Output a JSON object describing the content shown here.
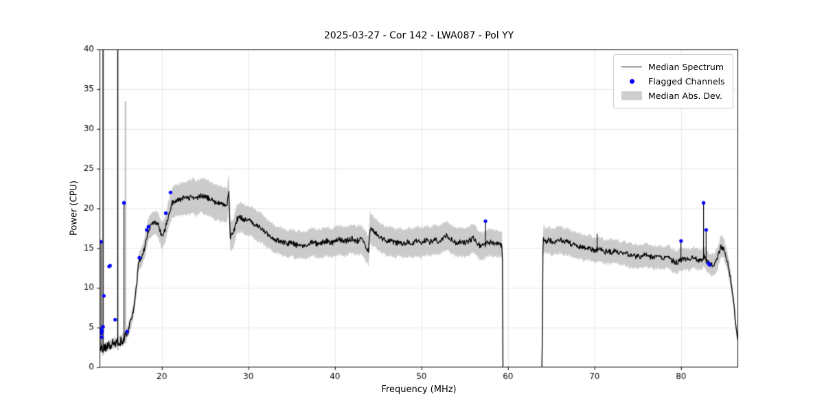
{
  "chart_data": {
    "type": "line",
    "title": "2025-03-27 - Cor 142 - LWA087 - Pol YY",
    "xlabel": "Frequency (MHz)",
    "ylabel": "Power (CPU)",
    "xlim": [
      12.8,
      86.6
    ],
    "ylim": [
      0,
      40
    ],
    "xticks": [
      20,
      30,
      40,
      50,
      60,
      70,
      80
    ],
    "yticks": [
      0,
      5,
      10,
      15,
      20,
      25,
      30,
      35,
      40
    ],
    "grid": true,
    "gap": [
      59.42,
      63.95
    ],
    "noise_amplitude": 0.34,
    "band_noise_amplitude": 0.22,
    "low_freq_cutoff": 16.5,
    "low_freq_noise_boost": 1.8,
    "seed": 42,
    "legend": {
      "position": "upper right",
      "entries": [
        {
          "label": "Median Spectrum",
          "type": "line",
          "color": "#000000"
        },
        {
          "label": "Flagged Channels",
          "type": "point",
          "color": "#0000ff"
        },
        {
          "label": "Median Abs. Dev.",
          "type": "patch",
          "color": "#cfcfcf"
        }
      ]
    },
    "median_spectrum": [
      [
        12.8,
        2.4
      ],
      [
        13.2,
        2.5
      ],
      [
        13.6,
        2.6
      ],
      [
        14.0,
        2.8
      ],
      [
        14.4,
        3.0
      ],
      [
        14.8,
        3.1
      ],
      [
        15.2,
        3.3
      ],
      [
        15.6,
        3.6
      ],
      [
        16.0,
        4.4
      ],
      [
        16.4,
        5.6
      ],
      [
        16.8,
        7.6
      ],
      [
        17.1,
        10.5
      ],
      [
        17.3,
        13.3
      ],
      [
        17.6,
        13.7
      ],
      [
        18.0,
        15.0
      ],
      [
        18.4,
        17.2
      ],
      [
        18.8,
        17.9
      ],
      [
        19.2,
        18.2
      ],
      [
        19.6,
        17.9
      ],
      [
        20.0,
        16.5
      ],
      [
        20.4,
        17.4
      ],
      [
        20.8,
        19.3
      ],
      [
        21.2,
        20.7
      ],
      [
        21.6,
        21.0
      ],
      [
        22.0,
        21.1
      ],
      [
        22.5,
        21.3
      ],
      [
        23.0,
        21.2
      ],
      [
        23.5,
        21.6
      ],
      [
        24.0,
        21.2
      ],
      [
        24.5,
        21.7
      ],
      [
        25.0,
        21.4
      ],
      [
        25.5,
        21.2
      ],
      [
        26.0,
        20.9
      ],
      [
        26.5,
        20.7
      ],
      [
        27.0,
        20.5
      ],
      [
        27.5,
        20.4
      ],
      [
        27.75,
        22.2
      ],
      [
        27.9,
        16.4
      ],
      [
        28.3,
        17.0
      ],
      [
        28.7,
        18.7
      ],
      [
        29.1,
        18.9
      ],
      [
        29.5,
        18.6
      ],
      [
        30.0,
        18.4
      ],
      [
        30.5,
        18.3
      ],
      [
        31.0,
        17.7
      ],
      [
        31.5,
        17.6
      ],
      [
        32.0,
        16.9
      ],
      [
        32.5,
        16.6
      ],
      [
        33.0,
        16.1
      ],
      [
        33.5,
        16.0
      ],
      [
        34.0,
        15.7
      ],
      [
        34.5,
        15.5
      ],
      [
        35.0,
        15.7
      ],
      [
        35.5,
        15.4
      ],
      [
        36.0,
        15.5
      ],
      [
        36.5,
        15.3
      ],
      [
        37.0,
        15.6
      ],
      [
        37.5,
        15.8
      ],
      [
        38.0,
        15.5
      ],
      [
        38.5,
        15.7
      ],
      [
        39.0,
        15.9
      ],
      [
        39.5,
        15.6
      ],
      [
        40.0,
        15.8
      ],
      [
        40.5,
        16.1
      ],
      [
        41.0,
        15.8
      ],
      [
        41.5,
        16.0
      ],
      [
        42.0,
        16.2
      ],
      [
        42.5,
        15.9
      ],
      [
        43.0,
        16.1
      ],
      [
        43.5,
        15.4
      ],
      [
        43.9,
        14.6
      ],
      [
        44.05,
        17.6
      ],
      [
        44.4,
        17.1
      ],
      [
        44.8,
        16.8
      ],
      [
        45.2,
        16.4
      ],
      [
        45.6,
        16.1
      ],
      [
        46.0,
        15.8
      ],
      [
        46.5,
        15.9
      ],
      [
        47.0,
        15.6
      ],
      [
        47.5,
        15.8
      ],
      [
        48.0,
        15.5
      ],
      [
        48.5,
        15.8
      ],
      [
        49.0,
        15.6
      ],
      [
        49.5,
        15.9
      ],
      [
        50.0,
        15.7
      ],
      [
        50.5,
        16.0
      ],
      [
        51.0,
        15.8
      ],
      [
        51.5,
        16.1
      ],
      [
        52.0,
        15.9
      ],
      [
        52.5,
        16.3
      ],
      [
        53.0,
        16.6
      ],
      [
        53.5,
        16.1
      ],
      [
        54.0,
        15.7
      ],
      [
        54.5,
        15.8
      ],
      [
        55.0,
        15.6
      ],
      [
        55.5,
        15.9
      ],
      [
        56.0,
        16.3
      ],
      [
        56.4,
        15.8
      ],
      [
        56.8,
        15.2
      ],
      [
        57.2,
        15.3
      ],
      [
        57.5,
        15.6
      ],
      [
        58.0,
        15.8
      ],
      [
        58.5,
        15.6
      ],
      [
        59.0,
        15.5
      ],
      [
        59.35,
        15.3
      ],
      [
        59.45,
        0
      ],
      [
        63.95,
        0
      ],
      [
        64.05,
        16.3
      ],
      [
        64.4,
        15.9
      ],
      [
        64.8,
        16.0
      ],
      [
        65.2,
        15.7
      ],
      [
        65.6,
        15.9
      ],
      [
        66.0,
        16.1
      ],
      [
        66.4,
        15.8
      ],
      [
        66.8,
        15.9
      ],
      [
        67.2,
        15.6
      ],
      [
        67.6,
        15.4
      ],
      [
        68.0,
        15.3
      ],
      [
        68.4,
        15.2
      ],
      [
        68.8,
        15.0
      ],
      [
        69.2,
        15.1
      ],
      [
        69.6,
        14.9
      ],
      [
        70.0,
        14.7
      ],
      [
        70.4,
        14.9
      ],
      [
        70.8,
        14.8
      ],
      [
        71.2,
        14.5
      ],
      [
        71.6,
        14.6
      ],
      [
        72.0,
        14.5
      ],
      [
        72.5,
        14.7
      ],
      [
        73.0,
        14.3
      ],
      [
        73.5,
        14.4
      ],
      [
        74.0,
        14.1
      ],
      [
        74.5,
        14.0
      ],
      [
        75.0,
        13.9
      ],
      [
        75.5,
        14.0
      ],
      [
        76.0,
        14.2
      ],
      [
        76.5,
        13.9
      ],
      [
        77.0,
        13.8
      ],
      [
        77.5,
        13.9
      ],
      [
        78.0,
        13.7
      ],
      [
        78.5,
        14.0
      ],
      [
        79.0,
        13.4
      ],
      [
        79.5,
        13.2
      ],
      [
        80.0,
        13.6
      ],
      [
        80.5,
        13.7
      ],
      [
        81.0,
        13.5
      ],
      [
        81.5,
        13.9
      ],
      [
        82.0,
        13.5
      ],
      [
        82.4,
        13.6
      ],
      [
        82.65,
        14.0
      ],
      [
        83.0,
        13.3
      ],
      [
        83.4,
        12.9
      ],
      [
        83.8,
        12.9
      ],
      [
        84.2,
        13.6
      ],
      [
        84.6,
        15.2
      ],
      [
        84.9,
        15.0
      ],
      [
        85.2,
        14.0
      ],
      [
        85.5,
        12.6
      ],
      [
        85.8,
        10.6
      ],
      [
        86.1,
        7.8
      ],
      [
        86.35,
        5.2
      ],
      [
        86.6,
        3.0
      ]
    ],
    "mad_halfwidth": [
      [
        12.8,
        0.5
      ],
      [
        14.0,
        0.6
      ],
      [
        15.0,
        0.7
      ],
      [
        16.0,
        0.8
      ],
      [
        17.0,
        1.0
      ],
      [
        18.0,
        1.3
      ],
      [
        19.0,
        1.5
      ],
      [
        20.0,
        1.6
      ],
      [
        21.0,
        1.8
      ],
      [
        22.0,
        2.0
      ],
      [
        24.0,
        2.2
      ],
      [
        26.0,
        2.2
      ],
      [
        27.8,
        2.2
      ],
      [
        28.1,
        1.8
      ],
      [
        30.0,
        1.9
      ],
      [
        32.0,
        1.8
      ],
      [
        34.0,
        1.7
      ],
      [
        36.0,
        1.7
      ],
      [
        38.0,
        1.8
      ],
      [
        40.0,
        1.8
      ],
      [
        42.0,
        1.8
      ],
      [
        44.0,
        1.9
      ],
      [
        46.0,
        1.8
      ],
      [
        48.0,
        1.8
      ],
      [
        50.0,
        1.8
      ],
      [
        52.0,
        1.8
      ],
      [
        54.0,
        1.8
      ],
      [
        56.0,
        1.8
      ],
      [
        58.0,
        1.7
      ],
      [
        59.35,
        1.6
      ],
      [
        59.45,
        0
      ],
      [
        63.95,
        0
      ],
      [
        64.05,
        1.6
      ],
      [
        66.0,
        1.7
      ],
      [
        68.0,
        1.6
      ],
      [
        70.0,
        1.6
      ],
      [
        72.0,
        1.5
      ],
      [
        74.0,
        1.5
      ],
      [
        76.0,
        1.5
      ],
      [
        78.0,
        1.4
      ],
      [
        80.0,
        1.4
      ],
      [
        82.0,
        1.3
      ],
      [
        83.0,
        1.3
      ],
      [
        84.0,
        1.4
      ],
      [
        85.0,
        1.3
      ],
      [
        85.8,
        1.0
      ],
      [
        86.3,
        0.7
      ],
      [
        86.6,
        0.5
      ]
    ],
    "spikes_black": [
      [
        12.97,
        15.8
      ],
      [
        13.2,
        44
      ],
      [
        14.9,
        44
      ],
      [
        15.62,
        20.6
      ],
      [
        27.75,
        22.2
      ],
      [
        57.4,
        18.3
      ],
      [
        70.3,
        16.8
      ],
      [
        79.98,
        15.8
      ],
      [
        82.6,
        20.6
      ],
      [
        82.9,
        17.2
      ]
    ],
    "spikes_gray": [
      [
        13.22,
        44
      ],
      [
        14.92,
        44
      ],
      [
        15.8,
        33.5
      ]
    ],
    "flagged_channels": [
      [
        12.97,
        15.8
      ],
      [
        12.9,
        4.8
      ],
      [
        13.0,
        4.3
      ],
      [
        13.05,
        3.8
      ],
      [
        13.1,
        4.6
      ],
      [
        13.2,
        5.1
      ],
      [
        13.3,
        9.0
      ],
      [
        13.9,
        12.7
      ],
      [
        14.02,
        12.8
      ],
      [
        14.6,
        6.0
      ],
      [
        15.62,
        20.7
      ],
      [
        16.0,
        4.5
      ],
      [
        17.4,
        13.8
      ],
      [
        18.25,
        17.3
      ],
      [
        18.45,
        17.7
      ],
      [
        20.45,
        19.4
      ],
      [
        21.0,
        22.0
      ],
      [
        57.4,
        18.4
      ],
      [
        80.0,
        15.9
      ],
      [
        82.6,
        20.7
      ],
      [
        82.9,
        17.3
      ],
      [
        83.15,
        13.1
      ],
      [
        83.3,
        12.9
      ]
    ],
    "colors": {
      "median_line": "#000000",
      "flagged_point": "#0000ff",
      "mad_band": "rgba(186,186,186,0.75)",
      "grid": "#e5e5e5",
      "frame": "#000000"
    }
  }
}
